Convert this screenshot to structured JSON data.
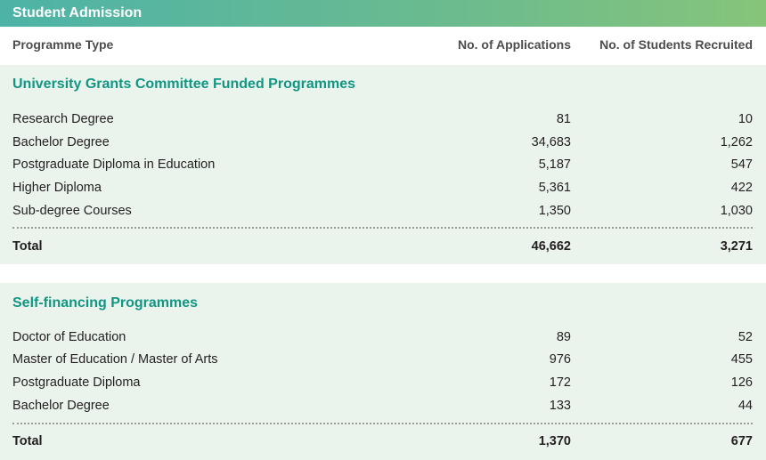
{
  "banner": {
    "title": "Student Admission"
  },
  "header": {
    "programme_type": "Programme Type",
    "applications": "No. of Applications",
    "recruited": "No. of Students Recruited"
  },
  "ugc": {
    "title": "University Grants Committee Funded Programmes",
    "rows": [
      {
        "name": "Research Degree",
        "applications": "81",
        "recruited": "10"
      },
      {
        "name": "Bachelor Degree",
        "applications": "34,683",
        "recruited": "1,262"
      },
      {
        "name": "Postgraduate Diploma in Education",
        "applications": "5,187",
        "recruited": "547"
      },
      {
        "name": "Higher Diploma",
        "applications": "5,361",
        "recruited": "422"
      },
      {
        "name": "Sub-degree Courses",
        "applications": "1,350",
        "recruited": "1,030"
      }
    ],
    "total": {
      "label": "Total",
      "applications": "46,662",
      "recruited": "3,271"
    }
  },
  "self": {
    "title": "Self-financing Programmes",
    "rows": [
      {
        "name": "Doctor of Education",
        "applications": "89",
        "recruited": "52"
      },
      {
        "name": "Master of Education / Master of Arts",
        "applications": "976",
        "recruited": "455"
      },
      {
        "name": "Postgraduate Diploma",
        "applications": "172",
        "recruited": "126"
      },
      {
        "name": "Bachelor Degree",
        "applications": "133",
        "recruited": "44"
      }
    ],
    "total": {
      "label": "Total",
      "applications": "1,370",
      "recruited": "677"
    }
  },
  "colors": {
    "banner_start": "#4db3a7",
    "banner_end": "#86c47a",
    "section_title": "#129683",
    "section_bg": "#eaf4ec"
  }
}
